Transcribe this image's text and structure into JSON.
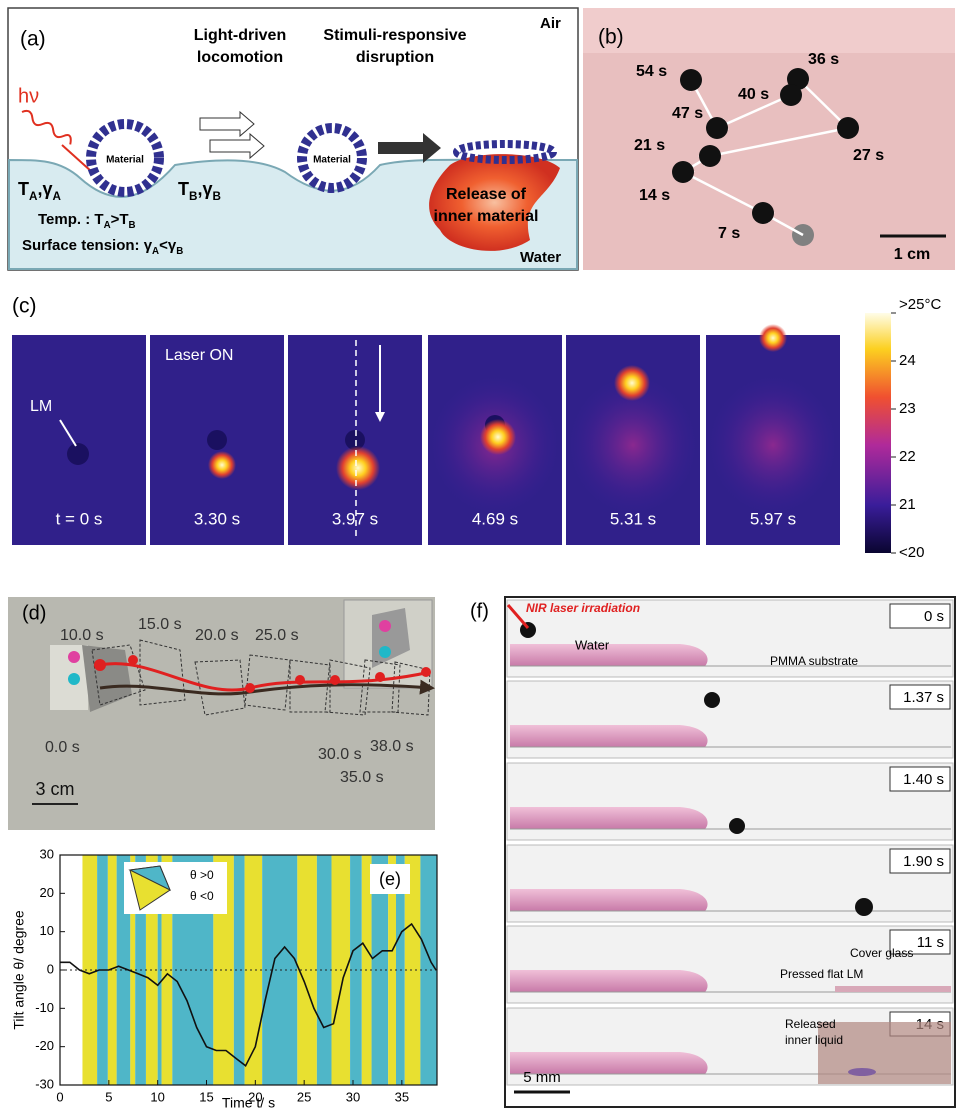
{
  "panel_a": {
    "label": "(a)",
    "air": "Air",
    "water": "Water",
    "hv": "hν",
    "step1": [
      "Light-driven",
      "locomotion"
    ],
    "step2": [
      "Stimuli-responsive",
      "disruption"
    ],
    "material": "Material",
    "left_state": [
      "T",
      "A",
      ",γ",
      "A"
    ],
    "right_state": [
      "T",
      "B",
      ",γ",
      "B"
    ],
    "temp": [
      "Temp. : T",
      "A",
      ">T",
      "B"
    ],
    "tension": [
      "Surface tension: γ",
      "A",
      "<γ",
      "B"
    ],
    "release": [
      "Release of",
      "inner material"
    ]
  },
  "panel_b": {
    "label": "(b)",
    "times": [
      "7 s",
      "14 s",
      "21 s",
      "27 s",
      "36 s",
      "40 s",
      "47 s",
      "54 s"
    ],
    "scale": "1 cm"
  },
  "panel_c": {
    "label": "(c)",
    "lm": "LM",
    "laser": "Laser ON",
    "frames": [
      "t = 0 s",
      "3.30 s",
      "3.97 s",
      "4.69 s",
      "5.31 s",
      "5.97 s"
    ],
    "clim": [
      20,
      25
    ],
    "colorbar_ticks": [
      {
        "value": 25,
        "label": ">25°C"
      },
      24,
      23,
      22,
      21,
      {
        "value": 20,
        "label": "<20"
      }
    ]
  },
  "panel_d": {
    "label": "(d)",
    "times": [
      "0.0 s",
      "10.0 s",
      "15.0 s",
      "20.0 s",
      "25.0 s",
      "30.0 s",
      "35.0 s",
      "38.0 s"
    ],
    "scale": "3 cm"
  },
  "panel_f": {
    "label": "(f)",
    "laser": "NIR laser irradiation",
    "water": "Water",
    "substrate": "PMMA substrate",
    "times": [
      "0 s",
      "1.37 s",
      "1.40 s",
      "1.90 s",
      "11 s",
      "14 s"
    ],
    "cover": "Cover glass",
    "pressed": "Pressed flat LM",
    "released": [
      "Released",
      "inner liquid"
    ],
    "scale": "5 mm"
  },
  "chart_data": {
    "type": "line",
    "label": "(e)",
    "inset": [
      "θ >0",
      "θ <0"
    ],
    "xlabel": "Time t/ s",
    "ylabel": "Tilt angle θ/ degree",
    "xlim": [
      0,
      38.6
    ],
    "ylim": [
      -30,
      30
    ],
    "xticks": [
      0,
      5,
      10,
      15,
      20,
      25,
      30,
      35
    ],
    "yticks": [
      -30,
      -20,
      -10,
      0,
      10,
      20,
      30
    ],
    "bands": [
      {
        "x": [
          2.3,
          3.8
        ],
        "color": "#e8e030"
      },
      {
        "x": [
          3.8,
          4.9
        ],
        "color": "#4fb6c8"
      },
      {
        "x": [
          4.9,
          5.8
        ],
        "color": "#e8e030"
      },
      {
        "x": [
          5.8,
          7.2
        ],
        "color": "#4fb6c8"
      },
      {
        "x": [
          7.2,
          7.7
        ],
        "color": "#e8e030"
      },
      {
        "x": [
          7.7,
          8.8
        ],
        "color": "#4fb6c8"
      },
      {
        "x": [
          8.8,
          10
        ],
        "color": "#e8e030"
      },
      {
        "x": [
          10,
          10.4
        ],
        "color": "#4fb6c8"
      },
      {
        "x": [
          10.4,
          11.5
        ],
        "color": "#e8e030"
      },
      {
        "x": [
          11.5,
          15.7
        ],
        "color": "#4fb6c8"
      },
      {
        "x": [
          15.7,
          17.8
        ],
        "color": "#e8e030"
      },
      {
        "x": [
          17.8,
          18.9
        ],
        "color": "#4fb6c8"
      },
      {
        "x": [
          18.9,
          20.7
        ],
        "color": "#e8e030"
      },
      {
        "x": [
          20.7,
          24.3
        ],
        "color": "#4fb6c8"
      },
      {
        "x": [
          24.3,
          26.3
        ],
        "color": "#e8e030"
      },
      {
        "x": [
          26.3,
          27.8
        ],
        "color": "#4fb6c8"
      },
      {
        "x": [
          27.8,
          29.7
        ],
        "color": "#e8e030"
      },
      {
        "x": [
          29.7,
          30.9
        ],
        "color": "#4fb6c8"
      },
      {
        "x": [
          30.9,
          31.9
        ],
        "color": "#e8e030"
      },
      {
        "x": [
          31.9,
          33.6
        ],
        "color": "#4fb6c8"
      },
      {
        "x": [
          33.6,
          34.4
        ],
        "color": "#e8e030"
      },
      {
        "x": [
          34.4,
          35.3
        ],
        "color": "#4fb6c8"
      },
      {
        "x": [
          35.3,
          36.9
        ],
        "color": "#e8e030"
      },
      {
        "x": [
          36.9,
          38.6
        ],
        "color": "#4fb6c8"
      }
    ],
    "series": [
      {
        "color": "#111111",
        "x": [
          0,
          1,
          2,
          3,
          4,
          5,
          6,
          7,
          8,
          9,
          10,
          11,
          12,
          13,
          14,
          15,
          16,
          17,
          18,
          19,
          20,
          21,
          22,
          23,
          24,
          25,
          26,
          27,
          28,
          29,
          30,
          31,
          32,
          33,
          34,
          35,
          36,
          37,
          38,
          38.5
        ],
        "values": [
          2,
          2,
          0,
          -1,
          0,
          0,
          1,
          0,
          -1,
          -2,
          -4,
          -1,
          -3,
          -8,
          -15,
          -20,
          -21,
          -21,
          -23,
          -25,
          -20,
          -8,
          3,
          6,
          3,
          -3,
          -10,
          -15,
          -14,
          -2,
          5,
          7,
          3,
          5,
          5,
          10,
          12,
          8,
          2,
          0
        ]
      }
    ]
  }
}
